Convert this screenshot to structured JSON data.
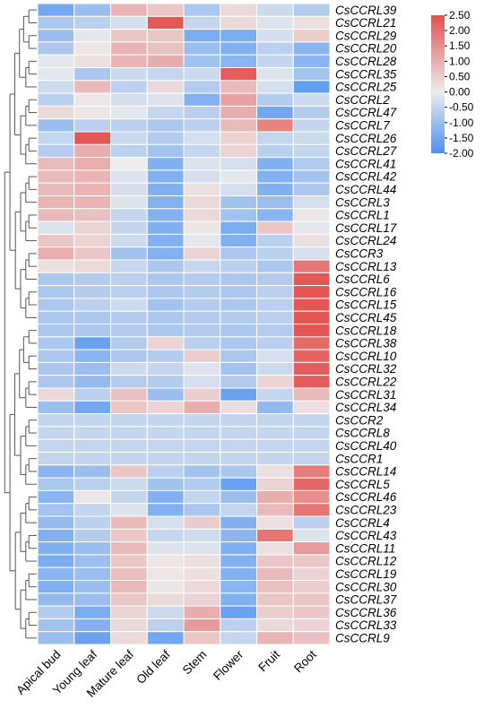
{
  "chart_data": {
    "type": "heatmap",
    "title": "",
    "xlabel": "",
    "ylabel": "",
    "columns": [
      "Apical bud",
      "Young leaf",
      "Mature leaf",
      "Old leaf",
      "Stem",
      "Flower",
      "Fruit",
      "Root"
    ],
    "rows": [
      "CsCCRL39",
      "CsCCRL21",
      "CsCCRL29",
      "CsCCRL20",
      "CsCCRL28",
      "CsCCRL35",
      "CsCCRL25",
      "CsCCRL2",
      "CsCCRL47",
      "CsCCRL7",
      "CsCCRL26",
      "CsCCRL27",
      "CsCCRL41",
      "CsCCRL42",
      "CsCCRL44",
      "CsCCRL3",
      "CsCCRL1",
      "CsCCRL17",
      "CsCCRL24",
      "CsCCR3",
      "CsCCRL13",
      "CsCCRL6",
      "CsCCRL16",
      "CsCCRL15",
      "CsCCRL45",
      "CsCCRL18",
      "CsCCRL38",
      "CsCCRL10",
      "CsCCRL32",
      "CsCCRL22",
      "CsCCRL31",
      "CsCCRL34",
      "CsCCR2",
      "CsCCRL8",
      "CsCCRL40",
      "CsCCR1",
      "CsCCRL14",
      "CsCCRL5",
      "CsCCRL46",
      "CsCCRL23",
      "CsCCRL4",
      "CsCCRL43",
      "CsCCRL11",
      "CsCCRL12",
      "CsCCRL19",
      "CsCCRL30",
      "CsCCRL37",
      "CsCCRL36",
      "CsCCRL33",
      "CsCCRL9"
    ],
    "values": [
      [
        -1.5,
        -1.0,
        0.9,
        0.6,
        -0.8,
        0.3,
        -0.4,
        -0.7
      ],
      [
        -0.8,
        -0.6,
        -0.3,
        2.4,
        -0.5,
        0.3,
        -0.2,
        0.2
      ],
      [
        -1.0,
        -0.1,
        0.6,
        0.6,
        -1.4,
        -1.4,
        -0.3,
        0.5
      ],
      [
        -0.8,
        0.1,
        0.9,
        0.7,
        -1.0,
        -1.3,
        -0.6,
        -1.2
      ],
      [
        -0.1,
        0.2,
        0.9,
        1.0,
        -0.9,
        -1.2,
        -0.5,
        -1.2
      ],
      [
        -0.1,
        -0.8,
        -0.4,
        -0.5,
        -0.4,
        2.3,
        -0.2,
        -0.9
      ],
      [
        -0.4,
        0.8,
        -0.6,
        0.3,
        -0.7,
        0.8,
        -0.3,
        -1.7
      ],
      [
        -0.6,
        0.1,
        -0.3,
        -0.2,
        -1.3,
        1.2,
        -0.7,
        -0.4
      ],
      [
        0.3,
        0.1,
        -0.1,
        -0.5,
        -0.6,
        1.0,
        -1.5,
        -0.7
      ],
      [
        -1.0,
        -0.6,
        -0.6,
        -0.8,
        -0.6,
        0.8,
        1.7,
        -0.5
      ],
      [
        -0.5,
        2.4,
        -0.4,
        -0.7,
        -0.3,
        0.4,
        -0.5,
        -0.4
      ],
      [
        -0.7,
        1.0,
        -0.6,
        -0.9,
        -0.5,
        0.4,
        -0.6,
        -0.5
      ],
      [
        0.8,
        1.0,
        0.0,
        -1.3,
        -0.2,
        -0.3,
        -1.3,
        -0.7
      ],
      [
        0.8,
        0.9,
        -0.2,
        -1.3,
        -0.3,
        -0.1,
        -1.3,
        -0.9
      ],
      [
        0.8,
        0.9,
        -0.3,
        -1.3,
        0.2,
        -0.3,
        -1.3,
        -0.8
      ],
      [
        0.9,
        0.9,
        -0.2,
        -1.3,
        0.3,
        -0.9,
        -1.0,
        -0.3
      ],
      [
        0.8,
        0.7,
        -0.5,
        -1.3,
        0.3,
        -0.9,
        -1.2,
        0.1
      ],
      [
        -0.2,
        0.4,
        -0.5,
        -1.3,
        0.1,
        -1.4,
        0.6,
        -0.1
      ],
      [
        0.6,
        0.4,
        -0.4,
        -1.3,
        -0.1,
        -1.3,
        -0.6,
        0.2
      ],
      [
        1.0,
        0.6,
        -0.9,
        -1.3,
        0.4,
        -0.8,
        -0.6,
        -0.3
      ],
      [
        0.2,
        0.3,
        -0.5,
        -0.8,
        -0.5,
        -0.6,
        -0.8,
        1.9
      ],
      [
        -0.8,
        -0.7,
        -0.6,
        -0.8,
        -0.7,
        -0.8,
        -0.7,
        2.4
      ],
      [
        -0.8,
        -0.7,
        -0.6,
        -0.8,
        -0.7,
        -0.8,
        -0.6,
        2.4
      ],
      [
        -0.8,
        -0.6,
        -0.4,
        -0.9,
        -0.7,
        -0.8,
        -0.6,
        2.4
      ],
      [
        -0.8,
        -0.8,
        -0.7,
        -0.8,
        -0.7,
        -0.7,
        -0.6,
        2.4
      ],
      [
        -0.8,
        -0.8,
        -0.7,
        -0.8,
        -0.7,
        -0.8,
        -0.7,
        2.4
      ],
      [
        -0.8,
        -1.6,
        -0.7,
        0.4,
        -0.6,
        -0.8,
        -0.6,
        2.1
      ],
      [
        -0.8,
        -1.2,
        -0.8,
        -0.7,
        0.5,
        -0.8,
        -0.3,
        2.2
      ],
      [
        -0.8,
        -1.0,
        -0.4,
        -0.5,
        -0.2,
        -0.9,
        -0.4,
        2.3
      ],
      [
        -0.8,
        -1.1,
        -0.7,
        -0.7,
        -0.3,
        -0.7,
        0.4,
        2.3
      ],
      [
        0.3,
        -0.6,
        0.7,
        -1.0,
        0.5,
        -1.6,
        -0.5,
        0.8
      ],
      [
        -1.0,
        -1.5,
        0.6,
        0.4,
        1.0,
        0.2,
        -1.1,
        0.2
      ],
      [
        -0.5,
        -0.5,
        -0.5,
        -0.5,
        -0.5,
        -0.5,
        -0.5,
        -0.5
      ],
      [
        -0.5,
        -0.5,
        -0.5,
        -0.5,
        -0.5,
        -0.5,
        -0.5,
        -0.5
      ],
      [
        -0.5,
        -0.5,
        -0.5,
        -0.5,
        -0.5,
        -0.5,
        -0.5,
        -0.5
      ],
      [
        -0.5,
        -0.5,
        -0.5,
        -0.5,
        -0.5,
        -0.5,
        -0.5,
        -0.5
      ],
      [
        -1.2,
        -1.0,
        0.6,
        -0.6,
        -0.9,
        -0.8,
        0.2,
        1.8
      ],
      [
        -0.8,
        -0.6,
        -0.4,
        -0.9,
        -0.7,
        -1.6,
        0.4,
        2.1
      ],
      [
        -1.2,
        0.1,
        -0.5,
        -1.3,
        -0.5,
        -1.0,
        1.0,
        1.5
      ],
      [
        -0.9,
        -0.5,
        -0.2,
        -1.3,
        -0.8,
        -0.5,
        0.8,
        1.9
      ],
      [
        -1.1,
        -0.6,
        0.8,
        -0.3,
        0.5,
        -1.3,
        0.2,
        -0.6
      ],
      [
        -1.3,
        -0.7,
        0.6,
        -0.5,
        -0.4,
        -1.2,
        1.9,
        -0.2
      ],
      [
        -1.3,
        -1.0,
        0.8,
        -0.2,
        -0.2,
        -1.3,
        0.2,
        1.3
      ],
      [
        -1.4,
        -1.0,
        0.6,
        0.1,
        0.2,
        -1.3,
        0.6,
        0.6
      ],
      [
        -1.2,
        -1.0,
        0.7,
        0.1,
        0.2,
        -1.3,
        0.8,
        0.4
      ],
      [
        -1.3,
        -1.0,
        0.8,
        0.1,
        0.3,
        -1.2,
        0.7,
        0.5
      ],
      [
        -1.1,
        -1.0,
        0.6,
        0.3,
        0.4,
        -1.3,
        0.6,
        0.6
      ],
      [
        -0.7,
        -1.4,
        0.4,
        -0.4,
        1.0,
        -1.6,
        0.5,
        0.6
      ],
      [
        -0.9,
        -1.3,
        0.3,
        -0.6,
        1.3,
        -0.6,
        0.3,
        0.4
      ],
      [
        -1.0,
        -1.6,
        0.3,
        -1.5,
        0.6,
        -0.5,
        0.9,
        0.7
      ]
    ],
    "color_scale": {
      "min": -2.0,
      "mid": 0.0,
      "max": 2.5,
      "colors": [
        "#4a90f2",
        "#ececec",
        "#e3514f"
      ],
      "ticks": [
        "2.50",
        "2.00",
        "1.50",
        "1.00",
        "0.50",
        "0.00",
        "-0.50",
        "-1.00",
        "-1.50",
        "-2.00"
      ]
    },
    "legend_position": "top-right",
    "row_dendrogram": "left"
  }
}
